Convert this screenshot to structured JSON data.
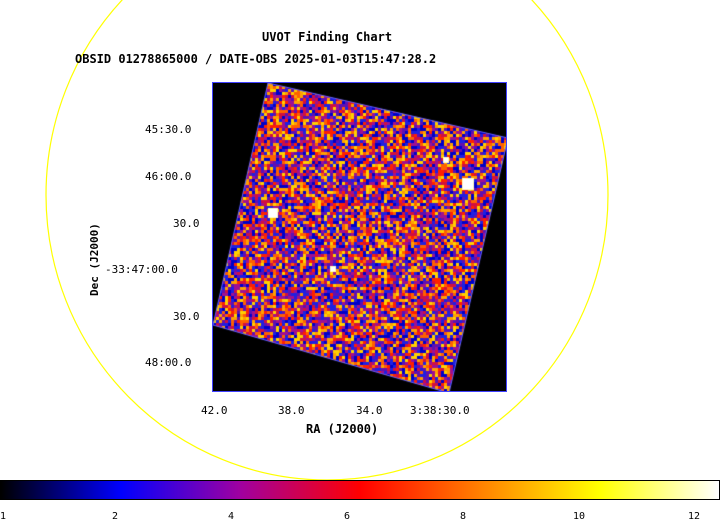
{
  "header": {
    "title": "UVOT Finding Chart",
    "subtitle": "OBSID 01278865000 / DATE-OBS 2025-01-03T15:47:28.2"
  },
  "axes": {
    "xlabel": "RA (J2000)",
    "ylabel": "Dec (J2000)",
    "x_ticks": [
      "42.0",
      "38.0",
      "34.0",
      "3:38:30.0"
    ],
    "y_ticks": [
      "45:30.0",
      "46:00.0",
      "30.0",
      "-33:47:00.0",
      "30.0",
      "48:00.0"
    ]
  },
  "colorbar": {
    "ticks": [
      "1",
      "2",
      "4",
      "6",
      "8",
      "10",
      "12"
    ],
    "colors": [
      "#000000",
      "#0000ff",
      "#a000a0",
      "#ff0000",
      "#ff8000",
      "#ffff00",
      "#ffffff"
    ]
  },
  "colors": {
    "circle": "#ffff00",
    "frame": "#4040ff"
  }
}
